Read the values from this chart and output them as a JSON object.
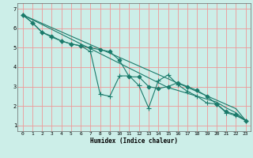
{
  "title": "",
  "xlabel": "Humidex (Indice chaleur)",
  "ylabel": "",
  "bg_color": "#cceee8",
  "grid_color": "#ee9999",
  "line_color": "#1a7a6a",
  "xlim": [
    -0.5,
    23.5
  ],
  "ylim": [
    0.7,
    7.3
  ],
  "yticks": [
    1,
    2,
    3,
    4,
    5,
    6,
    7
  ],
  "xticks": [
    0,
    1,
    2,
    3,
    4,
    5,
    6,
    7,
    8,
    9,
    10,
    11,
    12,
    13,
    14,
    15,
    16,
    17,
    18,
    19,
    20,
    21,
    22,
    23
  ],
  "series": [
    {
      "x": [
        0,
        1,
        2,
        3,
        4,
        5,
        6,
        7,
        8,
        9,
        10,
        11,
        12,
        13,
        14,
        15,
        16,
        17,
        18,
        19,
        20,
        21,
        22,
        23
      ],
      "y": [
        6.7,
        6.3,
        5.8,
        5.6,
        5.35,
        5.2,
        5.1,
        5.0,
        4.9,
        4.8,
        4.35,
        3.5,
        3.5,
        3.0,
        2.9,
        3.0,
        3.2,
        3.0,
        2.8,
        2.5,
        2.1,
        1.7,
        1.55,
        1.25
      ],
      "marker": "D",
      "markersize": 2.5,
      "lw": 0.8
    },
    {
      "x": [
        0,
        1,
        2,
        3,
        4,
        5,
        6,
        7,
        8,
        9,
        10,
        11,
        12,
        13,
        14,
        15,
        16,
        17,
        18,
        19,
        20,
        21,
        22,
        23
      ],
      "y": [
        6.7,
        6.3,
        5.8,
        5.55,
        5.35,
        5.2,
        5.1,
        4.8,
        2.6,
        2.5,
        3.55,
        3.55,
        3.05,
        1.9,
        3.3,
        3.6,
        3.1,
        2.75,
        2.5,
        2.15,
        2.1,
        1.65,
        1.5,
        1.25
      ],
      "marker": "+",
      "markersize": 4.0,
      "lw": 0.8
    },
    {
      "x": [
        0,
        1,
        2,
        3,
        4,
        5,
        6,
        7,
        8,
        9,
        10,
        11,
        12,
        13,
        14,
        15,
        16,
        17,
        18,
        19,
        20,
        21,
        22,
        23
      ],
      "y": [
        6.7,
        6.48,
        6.26,
        6.04,
        5.82,
        5.6,
        5.38,
        5.16,
        4.94,
        4.72,
        4.5,
        4.28,
        4.06,
        3.84,
        3.62,
        3.4,
        3.18,
        2.96,
        2.74,
        2.52,
        2.3,
        2.08,
        1.86,
        1.25
      ],
      "marker": null,
      "markersize": 0,
      "lw": 0.8
    },
    {
      "x": [
        0,
        1,
        2,
        3,
        4,
        5,
        6,
        7,
        8,
        9,
        10,
        11,
        12,
        13,
        14,
        15,
        16,
        17,
        18,
        19,
        20,
        21,
        22,
        23
      ],
      "y": [
        6.7,
        6.45,
        6.2,
        5.95,
        5.7,
        5.45,
        5.2,
        4.95,
        4.7,
        4.45,
        4.2,
        3.95,
        3.7,
        3.45,
        3.2,
        2.95,
        2.8,
        2.65,
        2.5,
        2.35,
        2.2,
        1.9,
        1.65,
        1.25
      ],
      "marker": null,
      "markersize": 0,
      "lw": 0.8
    }
  ]
}
